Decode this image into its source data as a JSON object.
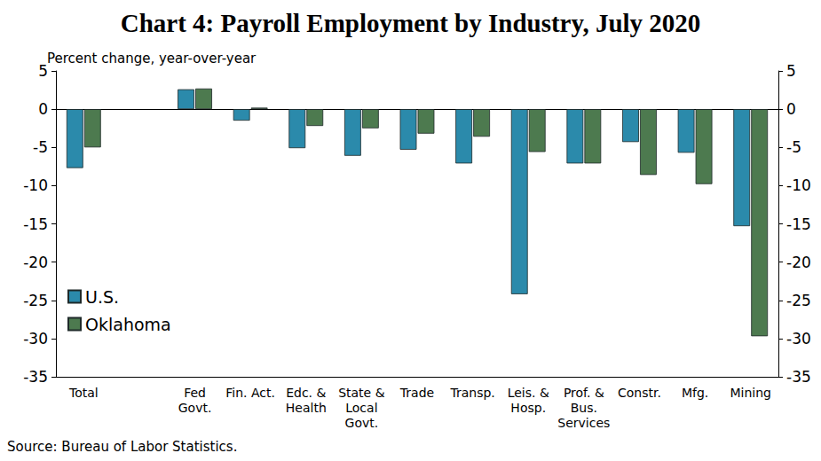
{
  "chart_data": {
    "type": "bar",
    "title": "Chart 4: Payroll Employment by Industry, July 2020",
    "y_label": "Percent change, year-over-year",
    "source": "Source: Bureau of Labor Statistics.",
    "categories": [
      "Total",
      null,
      "Fed\nGovt.",
      "Fin. Act.",
      "Edc. &\nHealth",
      "State &\nLocal\nGovt.",
      "Trade",
      "Transp.",
      "Leis. &\nHosp.",
      "Prof. &\nBus.\nServices",
      "Constr.",
      "Mfg.",
      "Mining"
    ],
    "series": [
      {
        "name": "U.S.",
        "color": "#2b8aab",
        "values": [
          -7.7,
          null,
          2.6,
          -1.5,
          -5.1,
          -6.1,
          -5.3,
          -7.1,
          -24.2,
          -7.1,
          -4.3,
          -5.7,
          -15.3
        ]
      },
      {
        "name": "Oklahoma",
        "color": "#4d7a4f",
        "values": [
          -5.0,
          null,
          2.7,
          0.2,
          -2.2,
          -2.5,
          -3.2,
          -3.6,
          -5.6,
          -7.1,
          -8.6,
          -9.8,
          -29.7
        ]
      }
    ],
    "ylim": [
      -35,
      5
    ],
    "yticks": [
      -35,
      -30,
      -25,
      -20,
      -15,
      -10,
      -5,
      0,
      5
    ],
    "y2lim": [
      -35,
      5
    ],
    "y2ticks": [
      -35,
      -30,
      -25,
      -20,
      -15,
      -10,
      -5,
      0,
      5
    ],
    "grid": false,
    "legend": "lower left"
  }
}
